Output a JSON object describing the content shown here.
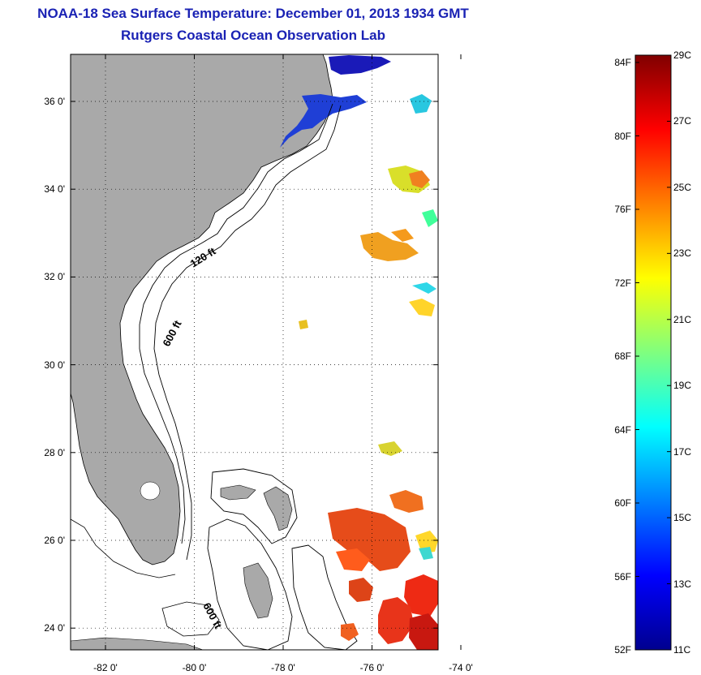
{
  "header": {
    "title": "NOAA-18 Sea Surface Temperature:  December 01, 2013 1934 GMT",
    "subtitle": "Rutgers Coastal Ocean Observation Lab"
  },
  "map": {
    "lat_ticks": [
      {
        "value": 36,
        "label": "36 0'"
      },
      {
        "value": 34,
        "label": "34 0'"
      },
      {
        "value": 32,
        "label": "32 0'"
      },
      {
        "value": 30,
        "label": "30 0'"
      },
      {
        "value": 28,
        "label": "28 0'"
      },
      {
        "value": 26,
        "label": "26 0'"
      },
      {
        "value": 24,
        "label": "24 0'"
      }
    ],
    "lon_ticks": [
      {
        "value": -82,
        "label": "-82 0'"
      },
      {
        "value": -80,
        "label": "-80 0'"
      },
      {
        "value": -78,
        "label": "-78 0'"
      },
      {
        "value": -76,
        "label": "-76 0'"
      },
      {
        "value": -74,
        "label": "-74 0'"
      }
    ],
    "contour_labels": [
      "120 ft",
      "600 ft",
      "600 ft"
    ],
    "land_color": "#a9a9a9",
    "sea_color": "#ffffff"
  },
  "colorbar": {
    "f_labels": [
      "84F",
      "80F",
      "76F",
      "72F",
      "68F",
      "64F",
      "60F",
      "56F",
      "52F"
    ],
    "c_labels": [
      "29C",
      "27C",
      "25C",
      "23C",
      "21C",
      "19C",
      "17C",
      "15C",
      "13C",
      "11C"
    ],
    "colormap": "jet"
  }
}
